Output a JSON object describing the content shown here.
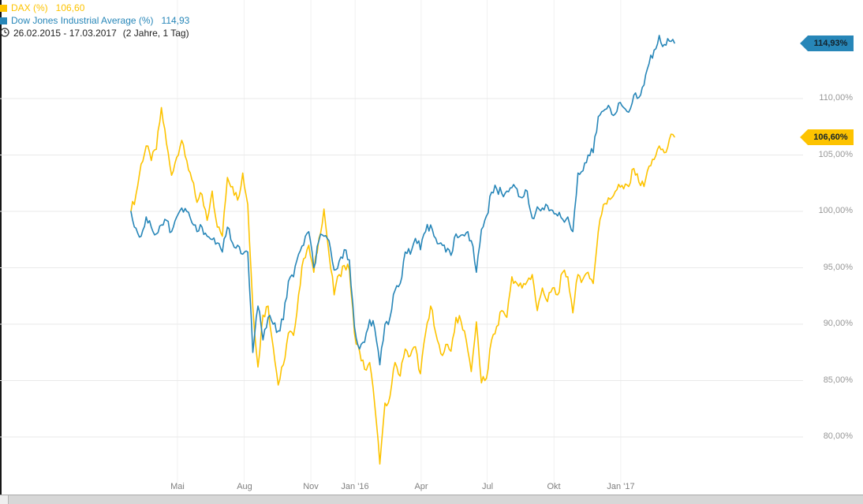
{
  "legend": {
    "series": [
      {
        "label": "DAX (%)",
        "value": "106,60"
      },
      {
        "label": "Dow Jones Industrial Average (%)",
        "value": "114,93"
      }
    ],
    "period": "26.02.2015 - 17.03.2017",
    "period_detail": "(2 Jahre, 1 Tag)"
  },
  "price_tags": [
    {
      "name": "price-tag-dow",
      "label": "114,93%",
      "value": 114.93,
      "color": "#2786B8"
    },
    {
      "name": "price-tag-dax",
      "label": "106,60%",
      "value": 106.6,
      "color": "#FDC300"
    }
  ],
  "chart_data": {
    "type": "line",
    "x_range": {
      "start": "26.02.2015",
      "end": "17.03.2017",
      "span_label": "2 Jahre, 1 Tag"
    },
    "sampling": "weekly",
    "ylim": [
      75.9,
      118.7
    ],
    "grid": true,
    "legend_position": "top-left",
    "y_ticks": [
      {
        "label": "110,00%",
        "value": 110
      },
      {
        "label": "105,00%",
        "value": 105
      },
      {
        "label": "100,00%",
        "value": 100
      },
      {
        "label": "95,00%",
        "value": 95
      },
      {
        "label": "90,00%",
        "value": 90
      },
      {
        "label": "85,00%",
        "value": 85
      },
      {
        "label": "80,00%",
        "value": 80
      }
    ],
    "x_ticks": [
      {
        "label": "Mai",
        "week": 9.14
      },
      {
        "label": "Aug",
        "week": 22.29
      },
      {
        "label": "Nov",
        "week": 35.43
      },
      {
        "label": "Jan '16",
        "week": 44.14
      },
      {
        "label": "Apr",
        "week": 57.14
      },
      {
        "label": "Jul",
        "week": 70.14
      },
      {
        "label": "Okt",
        "week": 83.29
      },
      {
        "label": "Jan '17",
        "week": 96.43
      }
    ],
    "series": [
      {
        "name": "DAX (%)",
        "color": "#FDC300",
        "unit": "%",
        "last_value": 106.6,
        "values": [
          100.0,
          101.5,
          104.2,
          105.8,
          104.5,
          105.5,
          109.2,
          106.0,
          103.2,
          104.8,
          106.3,
          104.5,
          102.8,
          100.8,
          101.5,
          99.2,
          101.8,
          98.6,
          97.8,
          103.0,
          102.2,
          101.0,
          103.4,
          100.6,
          91.5,
          86.2,
          90.8,
          91.6,
          88.0,
          84.6,
          86.4,
          89.2,
          89.0,
          92.6,
          95.8,
          97.0,
          94.6,
          97.6,
          100.2,
          96.2,
          92.6,
          94.4,
          95.2,
          94.8,
          89.2,
          87.6,
          86.0,
          86.6,
          82.8,
          77.6,
          83.0,
          83.6,
          86.6,
          85.4,
          87.8,
          87.2,
          88.0,
          85.6,
          89.2,
          91.6,
          89.2,
          87.4,
          88.2,
          87.6,
          90.6,
          90.2,
          88.6,
          85.8,
          90.2,
          84.8,
          85.2,
          88.6,
          89.8,
          91.2,
          90.6,
          94.2,
          93.6,
          93.2,
          93.8,
          94.4,
          91.2,
          93.2,
          92.0,
          93.2,
          92.6,
          94.6,
          94.2,
          91.0,
          94.4,
          94.0,
          94.6,
          93.6,
          98.2,
          100.6,
          101.2,
          101.4,
          102.4,
          102.0,
          102.2,
          103.8,
          102.6,
          102.2,
          104.0,
          104.6,
          105.8,
          105.2,
          106.4,
          106.6
        ]
      },
      {
        "name": "Dow Jones Industrial Average (%)",
        "color": "#2786B8",
        "unit": "%",
        "last_value": 114.93,
        "values": [
          100.0,
          98.5,
          97.8,
          99.5,
          98.6,
          98.0,
          98.8,
          99.2,
          98.2,
          99.5,
          100.3,
          100.0,
          99.0,
          98.2,
          98.6,
          97.8,
          97.5,
          97.2,
          96.4,
          98.6,
          97.2,
          97.0,
          96.2,
          96.4,
          87.5,
          91.6,
          88.6,
          90.6,
          90.0,
          89.4,
          90.4,
          93.8,
          94.2,
          96.2,
          97.0,
          98.2,
          95.0,
          97.4,
          97.8,
          97.4,
          94.8,
          95.6,
          96.6,
          95.7,
          89.8,
          87.8,
          88.4,
          90.4,
          89.6,
          86.4,
          90.0,
          90.6,
          93.0,
          93.6,
          96.4,
          96.2,
          97.6,
          96.6,
          98.2,
          98.8,
          97.6,
          97.2,
          96.4,
          96.1,
          98.0,
          97.9,
          98.1,
          97.4,
          94.6,
          98.4,
          99.6,
          101.7,
          102.0,
          101.6,
          101.8,
          102.1,
          102.0,
          101.2,
          101.8,
          99.4,
          100.4,
          100.3,
          100.5,
          100.1,
          99.6,
          99.3,
          99.5,
          98.2,
          103.4,
          103.6,
          105.0,
          105.2,
          108.4,
          108.9,
          109.4,
          108.5,
          109.6,
          109.2,
          108.8,
          110.3,
          110.1,
          111.2,
          113.1,
          114.3,
          115.6,
          114.8,
          115.1,
          114.93
        ]
      }
    ]
  }
}
